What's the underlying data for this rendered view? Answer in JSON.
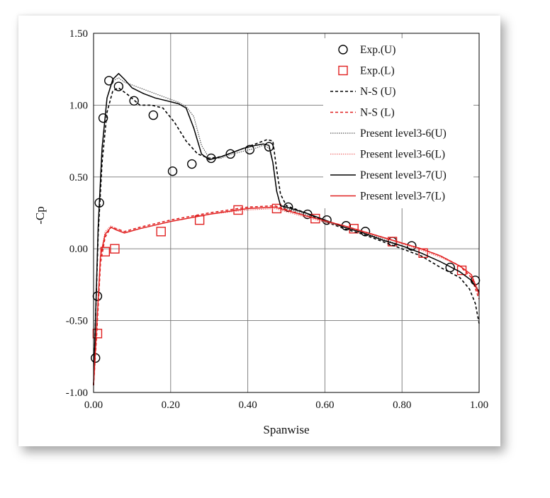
{
  "chart_data": {
    "type": "line",
    "xlabel": "Spanwise",
    "ylabel": "-Cp",
    "xlim": [
      0.0,
      1.0
    ],
    "ylim": [
      -1.0,
      1.5
    ],
    "x_ticks": [
      "0.00",
      "0.20",
      "0.40",
      "0.60",
      "0.80",
      "1.00"
    ],
    "y_ticks": [
      "1.50",
      "1.00",
      "0.50",
      "0.00",
      "-0.50",
      "-1.00"
    ],
    "grid": true,
    "legend_position": "top-right",
    "series": [
      {
        "name": "Exp.(U)",
        "kind": "marker",
        "marker": "circle",
        "color": "#000000",
        "points": [
          [
            0.005,
            -0.76
          ],
          [
            0.01,
            -0.33
          ],
          [
            0.015,
            0.32
          ],
          [
            0.025,
            0.91
          ],
          [
            0.04,
            1.17
          ],
          [
            0.065,
            1.13
          ],
          [
            0.105,
            1.03
          ],
          [
            0.155,
            0.93
          ],
          [
            0.205,
            0.54
          ],
          [
            0.255,
            0.59
          ],
          [
            0.305,
            0.63
          ],
          [
            0.355,
            0.66
          ],
          [
            0.405,
            0.69
          ],
          [
            0.455,
            0.71
          ],
          [
            0.505,
            0.29
          ],
          [
            0.555,
            0.24
          ],
          [
            0.605,
            0.2
          ],
          [
            0.655,
            0.16
          ],
          [
            0.705,
            0.12
          ],
          [
            0.775,
            0.05
          ],
          [
            0.825,
            0.02
          ],
          [
            0.925,
            -0.13
          ],
          [
            0.99,
            -0.22
          ]
        ]
      },
      {
        "name": "Exp.(L)",
        "kind": "marker",
        "marker": "square",
        "color": "#e02020",
        "points": [
          [
            0.01,
            -0.59
          ],
          [
            0.03,
            -0.02
          ],
          [
            0.055,
            0.0
          ],
          [
            0.175,
            0.12
          ],
          [
            0.275,
            0.2
          ],
          [
            0.375,
            0.27
          ],
          [
            0.475,
            0.28
          ],
          [
            0.575,
            0.21
          ],
          [
            0.675,
            0.14
          ],
          [
            0.775,
            0.05
          ],
          [
            0.855,
            -0.03
          ],
          [
            0.955,
            -0.15
          ]
        ]
      },
      {
        "name": "N-S (U)",
        "kind": "line",
        "dash": "4,3",
        "width": 1.6,
        "color": "#000000",
        "points": [
          [
            0.0,
            -0.95
          ],
          [
            0.005,
            -0.5
          ],
          [
            0.012,
            0.1
          ],
          [
            0.022,
            0.6
          ],
          [
            0.035,
            0.95
          ],
          [
            0.05,
            1.1
          ],
          [
            0.065,
            1.12
          ],
          [
            0.09,
            1.07
          ],
          [
            0.12,
            1.0
          ],
          [
            0.15,
            1.0
          ],
          [
            0.18,
            0.98
          ],
          [
            0.21,
            0.88
          ],
          [
            0.24,
            0.75
          ],
          [
            0.27,
            0.66
          ],
          [
            0.3,
            0.63
          ],
          [
            0.33,
            0.64
          ],
          [
            0.36,
            0.67
          ],
          [
            0.39,
            0.7
          ],
          [
            0.42,
            0.73
          ],
          [
            0.45,
            0.76
          ],
          [
            0.465,
            0.75
          ],
          [
            0.475,
            0.55
          ],
          [
            0.485,
            0.38
          ],
          [
            0.5,
            0.3
          ],
          [
            0.55,
            0.25
          ],
          [
            0.6,
            0.19
          ],
          [
            0.65,
            0.14
          ],
          [
            0.7,
            0.1
          ],
          [
            0.75,
            0.05
          ],
          [
            0.8,
            0.0
          ],
          [
            0.85,
            -0.05
          ],
          [
            0.9,
            -0.13
          ],
          [
            0.95,
            -0.2
          ],
          [
            0.975,
            -0.28
          ],
          [
            0.99,
            -0.38
          ],
          [
            1.0,
            -0.52
          ]
        ]
      },
      {
        "name": "N-S (L)",
        "kind": "line",
        "dash": "4,3",
        "width": 1.6,
        "color": "#e02020",
        "points": [
          [
            0.0,
            -0.95
          ],
          [
            0.008,
            -0.6
          ],
          [
            0.018,
            -0.1
          ],
          [
            0.03,
            0.08
          ],
          [
            0.045,
            0.15
          ],
          [
            0.06,
            0.14
          ],
          [
            0.08,
            0.12
          ],
          [
            0.12,
            0.15
          ],
          [
            0.2,
            0.2
          ],
          [
            0.3,
            0.25
          ],
          [
            0.4,
            0.29
          ],
          [
            0.47,
            0.3
          ],
          [
            0.55,
            0.23
          ],
          [
            0.65,
            0.16
          ],
          [
            0.75,
            0.08
          ],
          [
            0.85,
            0.0
          ],
          [
            0.9,
            -0.05
          ],
          [
            0.95,
            -0.12
          ],
          [
            0.98,
            -0.2
          ],
          [
            1.0,
            -0.35
          ]
        ]
      },
      {
        "name": "Present level3-6(U)",
        "kind": "line",
        "dash": "1.5,1.5",
        "width": 1.2,
        "color": "#555555",
        "points": [
          [
            0.0,
            -0.95
          ],
          [
            0.005,
            -0.5
          ],
          [
            0.012,
            0.15
          ],
          [
            0.022,
            0.7
          ],
          [
            0.035,
            1.05
          ],
          [
            0.05,
            1.17
          ],
          [
            0.065,
            1.19
          ],
          [
            0.08,
            1.16
          ],
          [
            0.1,
            1.14
          ],
          [
            0.13,
            1.11
          ],
          [
            0.16,
            1.08
          ],
          [
            0.19,
            1.05
          ],
          [
            0.22,
            1.02
          ],
          [
            0.24,
            0.99
          ],
          [
            0.26,
            0.92
          ],
          [
            0.28,
            0.72
          ],
          [
            0.3,
            0.63
          ],
          [
            0.33,
            0.63
          ],
          [
            0.36,
            0.66
          ],
          [
            0.39,
            0.68
          ],
          [
            0.42,
            0.7
          ],
          [
            0.44,
            0.72
          ],
          [
            0.455,
            0.7
          ],
          [
            0.465,
            0.6
          ],
          [
            0.475,
            0.4
          ],
          [
            0.485,
            0.3
          ],
          [
            0.5,
            0.28
          ],
          [
            0.55,
            0.24
          ],
          [
            0.6,
            0.19
          ],
          [
            0.65,
            0.15
          ],
          [
            0.7,
            0.11
          ],
          [
            0.75,
            0.07
          ],
          [
            0.8,
            0.02
          ],
          [
            0.85,
            -0.03
          ],
          [
            0.9,
            -0.09
          ],
          [
            0.95,
            -0.16
          ],
          [
            0.98,
            -0.22
          ],
          [
            1.0,
            -0.3
          ]
        ]
      },
      {
        "name": "Present level3-6(L)",
        "kind": "line",
        "dash": "1.5,1.5",
        "width": 1.2,
        "color": "#f07070",
        "points": [
          [
            0.0,
            -0.95
          ],
          [
            0.008,
            -0.55
          ],
          [
            0.018,
            -0.05
          ],
          [
            0.03,
            0.12
          ],
          [
            0.045,
            0.16
          ],
          [
            0.06,
            0.14
          ],
          [
            0.08,
            0.11
          ],
          [
            0.12,
            0.14
          ],
          [
            0.2,
            0.19
          ],
          [
            0.3,
            0.24
          ],
          [
            0.4,
            0.27
          ],
          [
            0.47,
            0.28
          ],
          [
            0.55,
            0.22
          ],
          [
            0.65,
            0.15
          ],
          [
            0.75,
            0.08
          ],
          [
            0.85,
            -0.01
          ],
          [
            0.9,
            -0.06
          ],
          [
            0.95,
            -0.12
          ],
          [
            0.98,
            -0.18
          ],
          [
            1.0,
            -0.3
          ]
        ]
      },
      {
        "name": "Present level3-7(U)",
        "kind": "line",
        "dash": "",
        "width": 1.5,
        "color": "#000000",
        "points": [
          [
            0.0,
            -0.95
          ],
          [
            0.005,
            -0.5
          ],
          [
            0.012,
            0.15
          ],
          [
            0.022,
            0.7
          ],
          [
            0.035,
            1.05
          ],
          [
            0.05,
            1.18
          ],
          [
            0.065,
            1.22
          ],
          [
            0.08,
            1.18
          ],
          [
            0.1,
            1.12
          ],
          [
            0.13,
            1.08
          ],
          [
            0.16,
            1.05
          ],
          [
            0.19,
            1.03
          ],
          [
            0.22,
            1.01
          ],
          [
            0.24,
            0.98
          ],
          [
            0.26,
            0.84
          ],
          [
            0.28,
            0.66
          ],
          [
            0.3,
            0.62
          ],
          [
            0.33,
            0.64
          ],
          [
            0.36,
            0.67
          ],
          [
            0.39,
            0.7
          ],
          [
            0.42,
            0.72
          ],
          [
            0.44,
            0.73
          ],
          [
            0.455,
            0.72
          ],
          [
            0.465,
            0.6
          ],
          [
            0.475,
            0.4
          ],
          [
            0.485,
            0.3
          ],
          [
            0.5,
            0.29
          ],
          [
            0.55,
            0.25
          ],
          [
            0.6,
            0.2
          ],
          [
            0.65,
            0.15
          ],
          [
            0.7,
            0.11
          ],
          [
            0.75,
            0.06
          ],
          [
            0.8,
            0.02
          ],
          [
            0.85,
            -0.03
          ],
          [
            0.9,
            -0.09
          ],
          [
            0.95,
            -0.16
          ],
          [
            0.98,
            -0.22
          ],
          [
            1.0,
            -0.3
          ]
        ]
      },
      {
        "name": "Present level3-7(L)",
        "kind": "line",
        "dash": "",
        "width": 1.5,
        "color": "#e02020",
        "points": [
          [
            0.0,
            -0.95
          ],
          [
            0.008,
            -0.55
          ],
          [
            0.018,
            -0.05
          ],
          [
            0.03,
            0.1
          ],
          [
            0.045,
            0.15
          ],
          [
            0.06,
            0.13
          ],
          [
            0.08,
            0.11
          ],
          [
            0.12,
            0.14
          ],
          [
            0.2,
            0.19
          ],
          [
            0.3,
            0.24
          ],
          [
            0.4,
            0.28
          ],
          [
            0.47,
            0.29
          ],
          [
            0.55,
            0.23
          ],
          [
            0.65,
            0.16
          ],
          [
            0.75,
            0.08
          ],
          [
            0.85,
            0.0
          ],
          [
            0.9,
            -0.05
          ],
          [
            0.95,
            -0.12
          ],
          [
            0.98,
            -0.18
          ],
          [
            1.0,
            -0.32
          ]
        ]
      }
    ]
  }
}
